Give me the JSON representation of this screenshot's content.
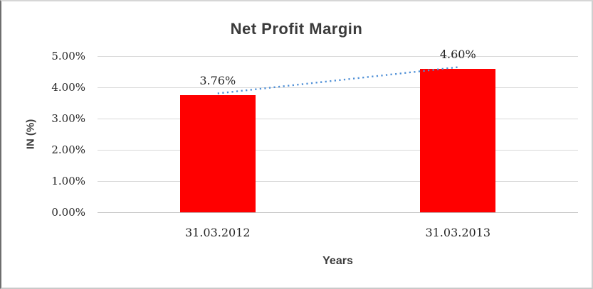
{
  "chart_data": {
    "type": "bar",
    "title": "Net Profit Margin",
    "xlabel": "Years",
    "ylabel": "IN (%)",
    "categories": [
      "31.03.2012",
      "31.03.2013"
    ],
    "values": [
      3.76,
      4.6
    ],
    "data_labels": [
      "3.76%",
      "4.60%"
    ],
    "yticks": [
      {
        "value": 0,
        "label": "0.00%"
      },
      {
        "value": 1,
        "label": "1.00%"
      },
      {
        "value": 2,
        "label": "2.00%"
      },
      {
        "value": 3,
        "label": "3.00%"
      },
      {
        "value": 4,
        "label": "4.00%"
      },
      {
        "value": 5,
        "label": "5.00%"
      }
    ],
    "ylim": [
      0,
      5
    ],
    "grid": true,
    "legend_position": "none",
    "trendline": {
      "type": "linear",
      "style": "dotted",
      "points": [
        3.76,
        4.6
      ]
    },
    "colors": {
      "bar": "#FF0000",
      "trendline": "#4E8FD6",
      "gridline": "#D9D9D9",
      "axis_line": "#BFBFBF",
      "title_text": "#3B3B3B",
      "tick_text": "#262626"
    }
  }
}
